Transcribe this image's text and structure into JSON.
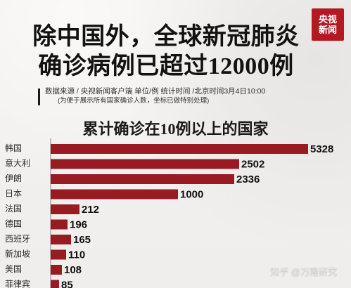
{
  "header": {
    "title_lines": [
      "除中国外，全球新冠肺炎",
      "确诊病例已超过12000例"
    ],
    "logo_lines": [
      "央视",
      "新闻"
    ],
    "meta_line": "数据来源 / 央视新闻客户端  单位/例  统计时间 /北京时间3月4日10:00",
    "meta_note": "(为便于展示所有国家确诊人数，坐标已做特别处理)"
  },
  "chart_data": {
    "type": "bar",
    "title": "累计确诊在10例以上的国家",
    "categories": [
      "韩国",
      "意大利",
      "伊朗",
      "日本",
      "法国",
      "德国",
      "西班牙",
      "新加坡",
      "美国",
      "菲律宾"
    ],
    "values": [
      5328,
      2502,
      2336,
      1000,
      212,
      196,
      165,
      110,
      108,
      85
    ],
    "value_labels": [
      "5328",
      "2502",
      "2336",
      "1000",
      "212",
      "196",
      "165",
      "110",
      "108",
      "85"
    ],
    "orientation": "horizontal",
    "axis_note": "coordinate processed for display",
    "colors": {
      "bar": "#981b24",
      "text": "#2a2a2a"
    }
  },
  "watermark": "知乎 @万隆研究"
}
